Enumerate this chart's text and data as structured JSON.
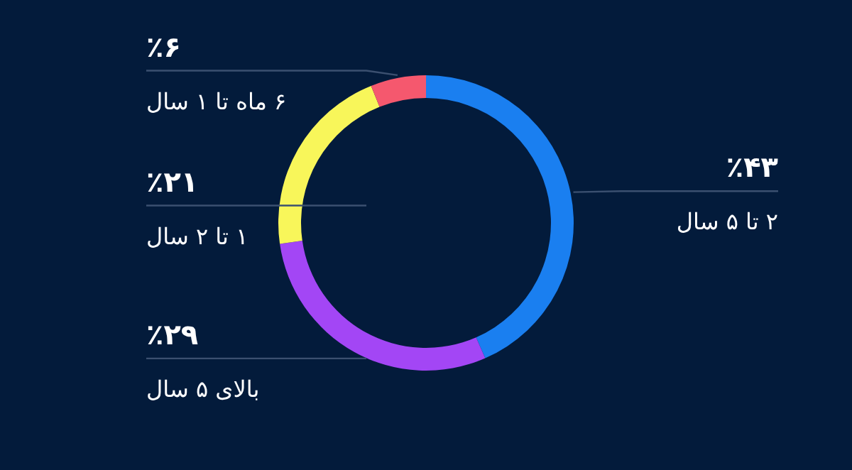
{
  "chart_data": {
    "type": "donut",
    "categories": [
      "۲ تا ۵ سال",
      "بالای ۵ سال",
      "۱ تا ۲ سال",
      "۶ ماه تا ۱ سال"
    ],
    "values": [
      43,
      29,
      21,
      6
    ],
    "colors": [
      "#1a7ff0",
      "#a346f5",
      "#f8f65a",
      "#f5586e"
    ],
    "value_labels": [
      "٪۴۳",
      "٪۲۹",
      "٪۲۱",
      "٪۶"
    ]
  }
}
